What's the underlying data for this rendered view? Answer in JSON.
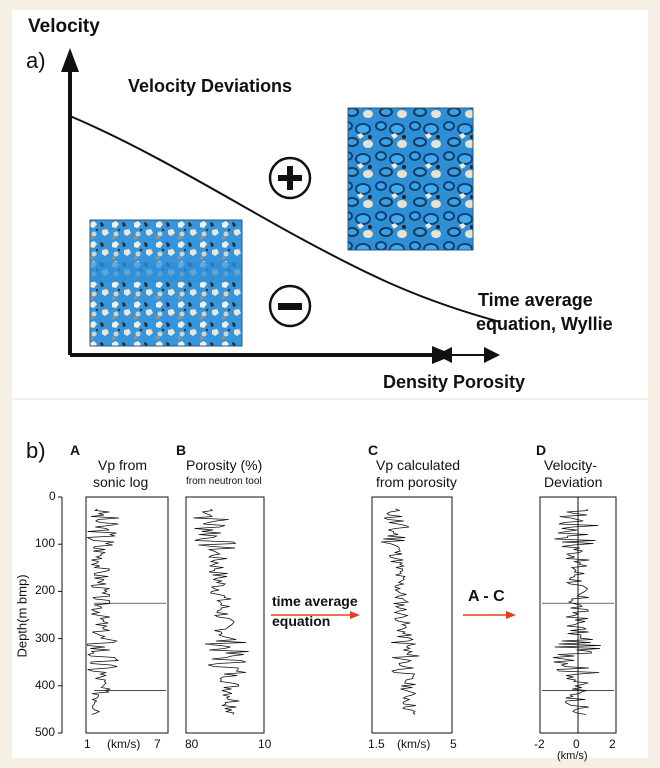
{
  "panel_a": {
    "label": "a)",
    "y_axis_label": "Velocity",
    "title": "Velocity Deviations",
    "plus_sign": "+",
    "curve_label_line1": "Time average",
    "curve_label_line2": "equation, Wyllie",
    "x_axis_label": "Density Porosity",
    "colors": {
      "pore_blue": "#2f8fd6",
      "curve": "#111111"
    },
    "thinsection_upper_icon": "thin-section-photo-icon",
    "thinsection_lower_icon": "thin-section-photo-icon"
  },
  "panel_b": {
    "label": "b)",
    "depth_axis_label": "Depth(m bmp)",
    "depth_ticks": [
      "0",
      "100",
      "200",
      "300",
      "400",
      "500"
    ],
    "depth_range": [
      0,
      500
    ],
    "tracks": [
      {
        "letter": "A",
        "title_line1": "Vp from",
        "title_line2": "sonic log",
        "x_min": "1",
        "x_units": "(km/s)",
        "x_max": "7"
      },
      {
        "letter": "B",
        "title_line1": "Porosity (%)",
        "title_line2": "from neutron tool",
        "x_min": "80",
        "x_units": "",
        "x_max": "10"
      },
      {
        "letter": "C",
        "title_line1": "Vp calculated",
        "title_line2": "from porosity",
        "x_min": "1.5",
        "x_units": "(km/s)",
        "x_max": "5"
      },
      {
        "letter": "D",
        "title_line1": "Velocity-",
        "title_line2": "Deviation",
        "x_min": "-2",
        "x_zero": "0",
        "x_units": "(km/s)",
        "x_max": "2"
      }
    ],
    "arrow1_line1": "time average",
    "arrow1_line2": "equation",
    "arrow2_label": "A - C",
    "arrow_color": "#e04020"
  }
}
